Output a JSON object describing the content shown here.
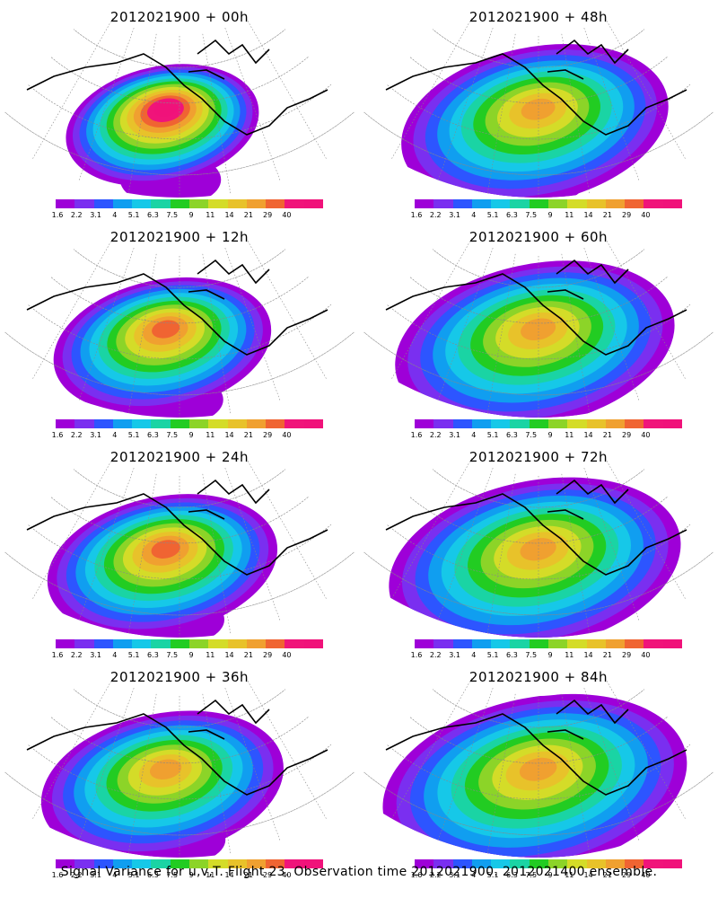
{
  "panels": [
    {
      "title": "2012021900 + 00h",
      "peak_level": 13,
      "extent": 0.45
    },
    {
      "title": "2012021900 + 48h",
      "peak_level": 10,
      "extent": 0.75
    },
    {
      "title": "2012021900 + 12h",
      "peak_level": 11,
      "extent": 0.55
    },
    {
      "title": "2012021900 + 60h",
      "peak_level": 10,
      "extent": 0.8
    },
    {
      "title": "2012021900 + 24h",
      "peak_level": 11,
      "extent": 0.6
    },
    {
      "title": "2012021900 + 72h",
      "peak_level": 10,
      "extent": 0.85
    },
    {
      "title": "2012021900 + 36h",
      "peak_level": 10,
      "extent": 0.65
    },
    {
      "title": "2012021900 + 84h",
      "peak_level": 10,
      "extent": 0.9
    }
  ],
  "colorbar": {
    "labels": [
      "1.6",
      "2.2",
      "3.1",
      "4",
      "5.1",
      "6.3",
      "7.5",
      "9",
      "11",
      "14",
      "21",
      "29",
      "40"
    ],
    "colors": [
      "#9e00d8",
      "#7a2ff0",
      "#2d55ff",
      "#109ef0",
      "#16c8e8",
      "#1ad4a4",
      "#22cc22",
      "#8cd428",
      "#d4dc28",
      "#e8c22a",
      "#f0a030",
      "#f06432",
      "#f0147a",
      "#f0127a"
    ]
  },
  "footer": "Signal Variance for u,v,T. Flight 23. Observation time 2012021900. 2012021400 ensemble."
}
